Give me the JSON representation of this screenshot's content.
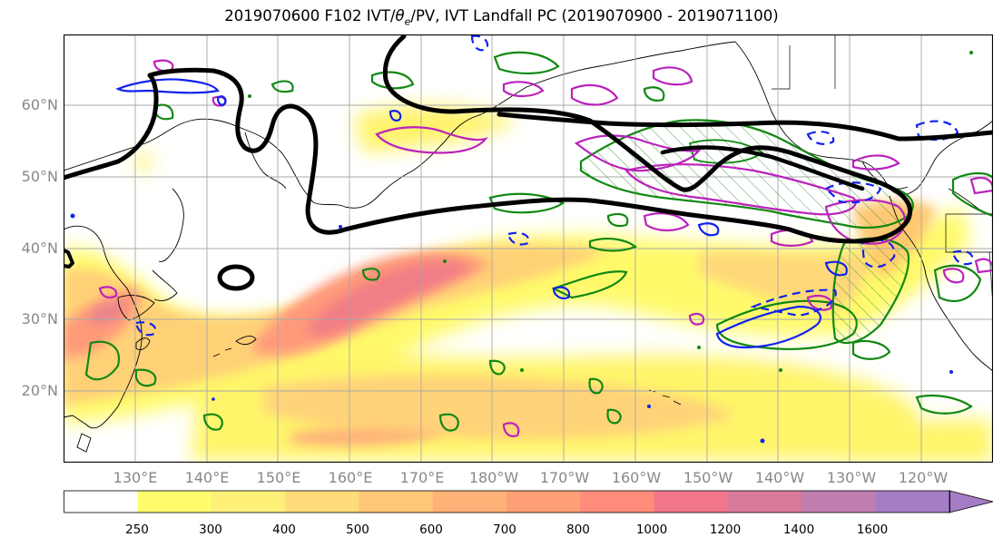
{
  "title": {
    "prefix": "2019070600 F102 IVT/",
    "theta_symbol": "θ",
    "theta_sub": "e",
    "suffix": "/PV, IVT Landfall PC (2019070900 - 2019071100)"
  },
  "map": {
    "projection": "equirectangular",
    "lon_range": [
      120,
      250
    ],
    "lat_range": [
      10,
      70
    ],
    "lat_labels": [
      "60°N",
      "50°N",
      "40°N",
      "30°N",
      "20°N"
    ],
    "lon_labels": [
      "130°E",
      "140°E",
      "150°E",
      "160°E",
      "170°E",
      "180°W",
      "170°W",
      "160°W",
      "150°W",
      "140°W",
      "130°W",
      "120°W"
    ],
    "gridlines": true,
    "layers": [
      {
        "name": "IVT shading",
        "style": "filled contours",
        "palette": "yellow-orange-red-purple"
      },
      {
        "name": "IVT Landfall PC",
        "style": "green contours with green hatching"
      },
      {
        "name": "theta-e/PV",
        "style": "magenta and blue contours (solid and dashed)"
      },
      {
        "name": "bold contour",
        "color": "#000000",
        "style": "thick black line"
      }
    ]
  },
  "colorbar": {
    "ticks": [
      "250",
      "300",
      "400",
      "500",
      "600",
      "700",
      "800",
      "1000",
      "1200",
      "1400",
      "1600"
    ],
    "colors": [
      "#ffffff",
      "#fffd6e",
      "#fff07a",
      "#ffdb7a",
      "#ffc778",
      "#ffb277",
      "#ff9f76",
      "#ff8c7a",
      "#f2768a",
      "#d97a9c",
      "#c07eb1",
      "#a57cc6"
    ],
    "extend": "max"
  }
}
